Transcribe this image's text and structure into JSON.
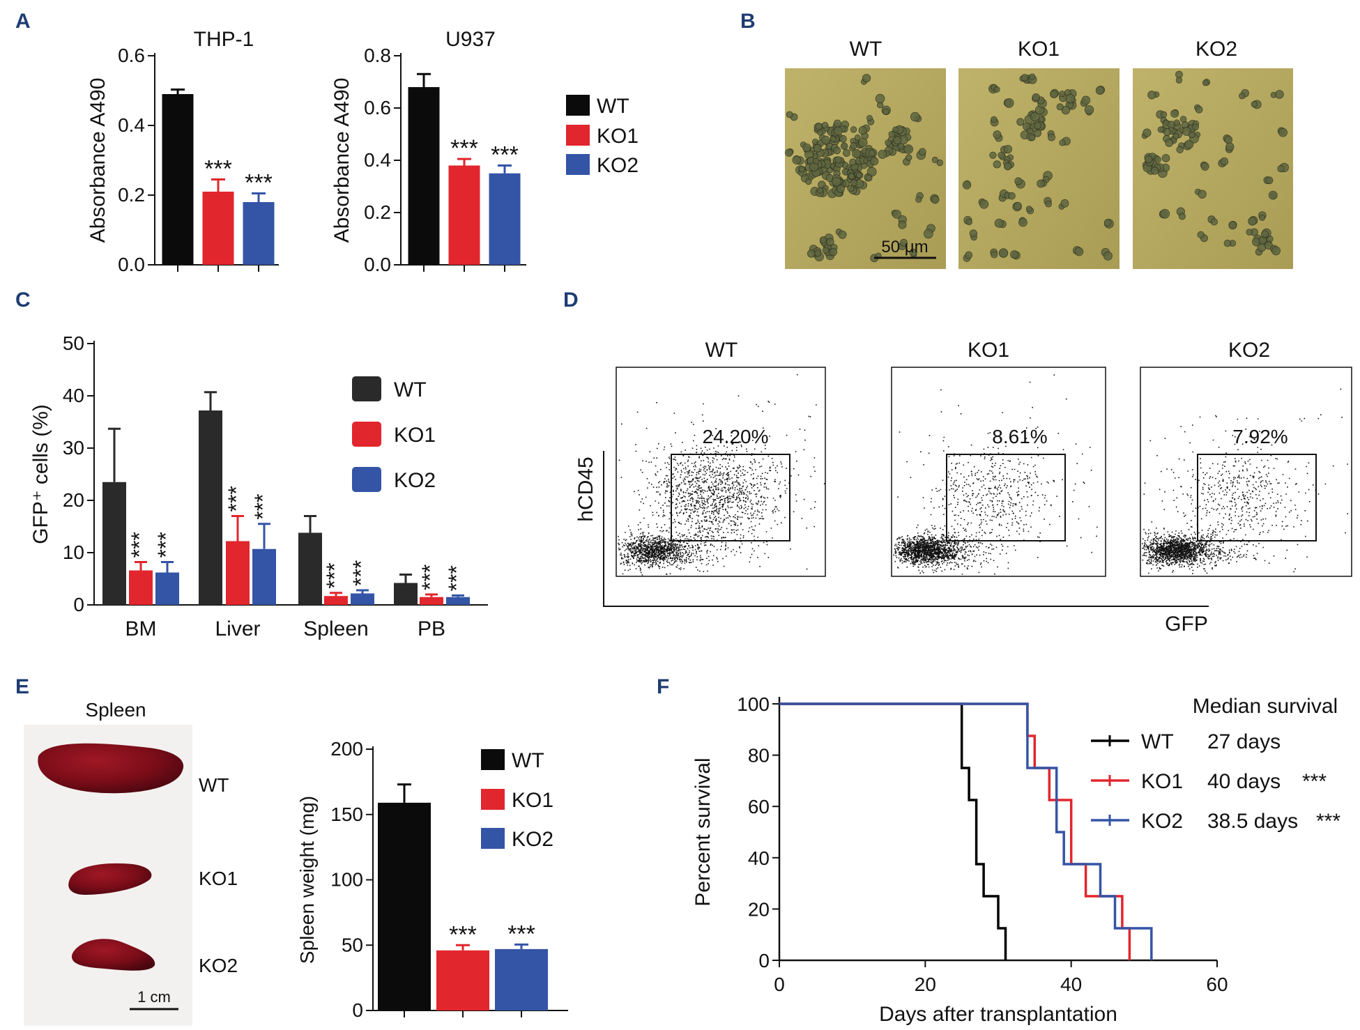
{
  "colors": {
    "WT": "#0b0b0b",
    "WT_C": "#2a2a2a",
    "KO1": "#e1262d",
    "KO2": "#3454a6",
    "label": "#1f3c73"
  },
  "panels": {
    "A": {
      "label": "A"
    },
    "B": {
      "label": "B",
      "titles": [
        "WT",
        "KO1",
        "KO2"
      ],
      "scale_bar": "50 μm"
    },
    "C": {
      "label": "C"
    },
    "D": {
      "label": "D",
      "titles": [
        "WT",
        "KO1",
        "KO2"
      ],
      "percents": [
        "24.20%",
        "8.61%",
        "7.92%"
      ],
      "ylabel": "hCD45",
      "xlabel": "GFP"
    },
    "E": {
      "label": "E",
      "photo_title": "Spleen",
      "photo_labels": [
        "WT",
        "KO1",
        "KO2"
      ],
      "scale_bar": "1 cm"
    },
    "F": {
      "label": "F",
      "legend_title": "Median survival",
      "legend": [
        {
          "name": "WT",
          "median": "27 days",
          "sig": ""
        },
        {
          "name": "KO1",
          "median": "40 days",
          "sig": "***"
        },
        {
          "name": "KO2",
          "median": "38.5 days",
          "sig": "***"
        }
      ]
    }
  },
  "chart_data": [
    {
      "id": "A1",
      "type": "bar",
      "title": "THP-1",
      "ylabel": "Absorbance A490",
      "ylim": [
        0,
        0.6
      ],
      "yticks": [
        0.0,
        0.2,
        0.4,
        0.6
      ],
      "categories": [
        "WT",
        "KO1",
        "KO2"
      ],
      "values": [
        0.49,
        0.21,
        0.18
      ],
      "errors": [
        0.013,
        0.035,
        0.025
      ],
      "sig": [
        "",
        "***",
        "***"
      ],
      "legend": [
        "WT",
        "KO1",
        "KO2"
      ]
    },
    {
      "id": "A2",
      "type": "bar",
      "title": "U937",
      "ylabel": "Absorbance A490",
      "ylim": [
        0,
        0.8
      ],
      "yticks": [
        0.0,
        0.2,
        0.4,
        0.6,
        0.8
      ],
      "categories": [
        "WT",
        "KO1",
        "KO2"
      ],
      "values": [
        0.68,
        0.38,
        0.35
      ],
      "errors": [
        0.05,
        0.025,
        0.03
      ],
      "sig": [
        "",
        "***",
        "***"
      ]
    },
    {
      "id": "C",
      "type": "bar",
      "ylabel": "GFP⁺ cells (%)",
      "ylim": [
        0,
        50
      ],
      "yticks": [
        0,
        10,
        20,
        30,
        40,
        50
      ],
      "categories": [
        "BM",
        "Liver",
        "Spleen",
        "PB"
      ],
      "series": [
        {
          "name": "WT",
          "values": [
            23.5,
            37.2,
            13.8,
            4.2
          ],
          "errors": [
            10.2,
            3.5,
            3.2,
            1.6
          ],
          "sig": [
            "",
            "",
            "",
            ""
          ]
        },
        {
          "name": "KO1",
          "values": [
            6.6,
            12.2,
            1.7,
            1.5
          ],
          "errors": [
            1.6,
            4.8,
            0.6,
            0.5
          ],
          "sig": [
            "***",
            "***",
            "***",
            "***"
          ]
        },
        {
          "name": "KO2",
          "values": [
            6.2,
            10.7,
            2.2,
            1.5
          ],
          "errors": [
            2.0,
            4.8,
            0.6,
            0.3
          ],
          "sig": [
            "***",
            "***",
            "***",
            "***"
          ]
        }
      ]
    },
    {
      "id": "E",
      "type": "bar",
      "ylabel": "Spleen weight (mg)",
      "ylim": [
        0,
        200
      ],
      "yticks": [
        0,
        50,
        100,
        150,
        200
      ],
      "categories": [
        "WT",
        "KO1",
        "KO2"
      ],
      "values": [
        159,
        46,
        47
      ],
      "errors": [
        14,
        4,
        3.5
      ],
      "sig": [
        "",
        "***",
        "***"
      ],
      "legend": [
        "WT",
        "KO1",
        "KO2"
      ]
    },
    {
      "id": "F",
      "type": "line",
      "xlabel": "Days after transplantation",
      "ylabel": "Percent survival",
      "xlim": [
        0,
        60
      ],
      "ylim": [
        0,
        100
      ],
      "xticks": [
        0,
        20,
        40,
        60
      ],
      "yticks": [
        0,
        20,
        40,
        60,
        80,
        100
      ],
      "series": [
        {
          "name": "WT",
          "x": [
            0,
            25,
            25,
            26,
            26,
            27,
            27,
            28,
            28,
            30,
            30,
            31,
            31
          ],
          "y": [
            100,
            100,
            75,
            75,
            62.5,
            62.5,
            37.5,
            37.5,
            25,
            25,
            12.5,
            12.5,
            0
          ]
        },
        {
          "name": "KO1",
          "x": [
            0,
            34,
            34,
            35,
            35,
            37,
            37,
            40,
            40,
            42,
            42,
            47,
            47,
            48,
            48
          ],
          "y": [
            100,
            100,
            87.5,
            87.5,
            75,
            75,
            62.5,
            62.5,
            37.5,
            37.5,
            25,
            25,
            12.5,
            12.5,
            0
          ]
        },
        {
          "name": "KO2",
          "x": [
            0,
            34,
            34,
            38,
            38,
            39,
            39,
            44,
            44,
            46,
            46,
            51,
            51
          ],
          "y": [
            100,
            100,
            75,
            75,
            50,
            50,
            37.5,
            37.5,
            25,
            25,
            12.5,
            12.5,
            0
          ]
        }
      ]
    }
  ]
}
